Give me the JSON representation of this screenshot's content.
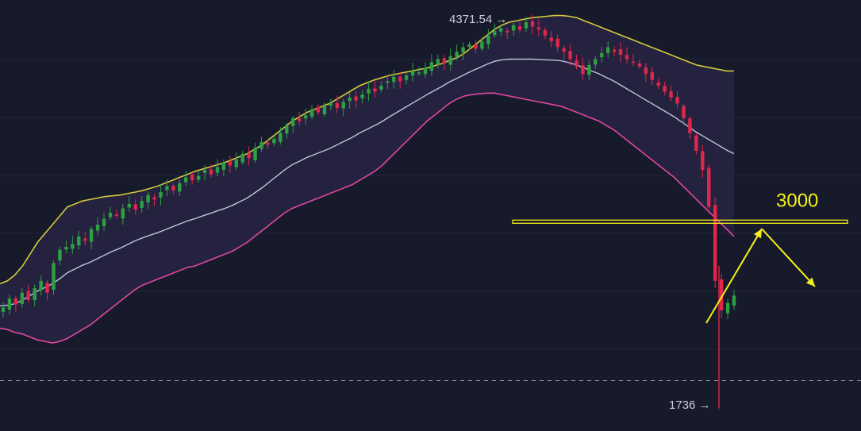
{
  "colors": {
    "background": "#161a2b",
    "grid": "#222638",
    "candle_up": "#2ea043",
    "candle_down": "#e0274a",
    "band_upper": "#d4c93a",
    "band_lower": "#e0479e",
    "band_middle": "#bfc3d9",
    "band_fill": "#2a2547",
    "annotation": "#f5ef1a",
    "price_label": "#c9ccd6",
    "dashed_line": "#8a8fa5"
  },
  "chart_data": {
    "type": "candlestick",
    "grid": true,
    "y_range": [
      1600,
      4500
    ],
    "high_marker": {
      "label": "4371.54",
      "value": 4371.54,
      "arrow": "→"
    },
    "low_marker": {
      "label": "1736",
      "value": 1736,
      "arrow": "→"
    },
    "dashed_line_value": 1925,
    "resistance": {
      "value": 3000,
      "label": "3000"
    },
    "candles_close": [
      2420,
      2480,
      2440,
      2520,
      2470,
      2550,
      2600,
      2520,
      2720,
      2810,
      2830,
      2850,
      2900,
      2870,
      2950,
      2980,
      3020,
      3060,
      3040,
      3090,
      3120,
      3080,
      3140,
      3180,
      3150,
      3200,
      3240,
      3210,
      3260,
      3300,
      3280,
      3310,
      3350,
      3320,
      3370,
      3400,
      3380,
      3420,
      3460,
      3430,
      3500,
      3540,
      3520,
      3560,
      3600,
      3650,
      3700,
      3680,
      3720,
      3760,
      3740,
      3780,
      3800,
      3770,
      3810,
      3840,
      3820,
      3860,
      3900,
      3880,
      3920,
      3950,
      3980,
      3950,
      3990,
      4020,
      4010,
      4040,
      4080,
      4100,
      4070,
      4120,
      4150,
      4180,
      4200,
      4170,
      4220,
      4260,
      4290,
      4310,
      4280,
      4330,
      4300,
      4350,
      4320,
      4300,
      4260,
      4220,
      4180,
      4150,
      4100,
      4050,
      4000,
      4060,
      4100,
      4140,
      4180,
      4150,
      4130,
      4100,
      4080,
      4050,
      4000,
      3960,
      3920,
      3880,
      3840,
      3800,
      3700,
      3600,
      3480,
      3350,
      3100,
      2600,
      2400,
      2450,
      2500
    ],
    "upper_band": [
      2580,
      2600,
      2640,
      2700,
      2780,
      2860,
      2920,
      2980,
      3040,
      3100,
      3120,
      3140,
      3150,
      3160,
      3170,
      3175,
      3180,
      3190,
      3200,
      3210,
      3225,
      3240,
      3260,
      3280,
      3300,
      3320,
      3340,
      3355,
      3370,
      3385,
      3400,
      3420,
      3440,
      3460,
      3490,
      3520,
      3560,
      3600,
      3640,
      3680,
      3710,
      3740,
      3760,
      3780,
      3800,
      3830,
      3860,
      3890,
      3920,
      3940,
      3960,
      3975,
      3990,
      4000,
      4010,
      4020,
      4030,
      4040,
      4055,
      4070,
      4090,
      4110,
      4140,
      4180,
      4220,
      4260,
      4300,
      4330,
      4350,
      4360,
      4370,
      4380,
      4385,
      4390,
      4395,
      4395,
      4390,
      4380,
      4360,
      4340,
      4320,
      4300,
      4280,
      4260,
      4240,
      4220,
      4200,
      4180,
      4160,
      4140,
      4120,
      4100,
      4080,
      4060,
      4050,
      4040,
      4030,
      4020,
      4020
    ],
    "lower_band": [
      2280,
      2270,
      2250,
      2240,
      2220,
      2200,
      2190,
      2180,
      2190,
      2210,
      2240,
      2270,
      2300,
      2340,
      2380,
      2420,
      2460,
      2500,
      2540,
      2570,
      2590,
      2610,
      2630,
      2650,
      2670,
      2690,
      2700,
      2720,
      2740,
      2760,
      2780,
      2800,
      2830,
      2860,
      2900,
      2940,
      2980,
      3020,
      3060,
      3090,
      3110,
      3130,
      3150,
      3170,
      3190,
      3210,
      3230,
      3250,
      3280,
      3310,
      3340,
      3380,
      3430,
      3480,
      3530,
      3580,
      3630,
      3680,
      3720,
      3760,
      3800,
      3830,
      3850,
      3860,
      3865,
      3870,
      3870,
      3860,
      3850,
      3840,
      3830,
      3820,
      3810,
      3800,
      3790,
      3780,
      3760,
      3740,
      3720,
      3700,
      3680,
      3650,
      3620,
      3580,
      3540,
      3500,
      3460,
      3420,
      3380,
      3340,
      3300,
      3250,
      3200,
      3150,
      3100,
      3050,
      3000,
      2950,
      2900
    ],
    "middle_band": [
      2430,
      2435,
      2445,
      2470,
      2500,
      2530,
      2555,
      2580,
      2615,
      2655,
      2680,
      2705,
      2725,
      2750,
      2775,
      2800,
      2820,
      2845,
      2870,
      2890,
      2908,
      2925,
      2945,
      2965,
      2985,
      3005,
      3020,
      3038,
      3055,
      3073,
      3090,
      3110,
      3135,
      3160,
      3195,
      3230,
      3270,
      3310,
      3350,
      3385,
      3410,
      3435,
      3455,
      3475,
      3495,
      3520,
      3545,
      3570,
      3600,
      3625,
      3650,
      3678,
      3710,
      3740,
      3770,
      3800,
      3830,
      3860,
      3888,
      3915,
      3945,
      3970,
      3995,
      4020,
      4042,
      4065,
      4085,
      4095,
      4100,
      4100,
      4100,
      4100,
      4098,
      4095,
      4093,
      4088,
      4075,
      4060,
      4040,
      4020,
      4000,
      3975,
      3950,
      3920,
      3890,
      3860,
      3830,
      3800,
      3770,
      3740,
      3710,
      3675,
      3640,
      3605,
      3575,
      3545,
      3515,
      3485,
      3460
    ]
  }
}
